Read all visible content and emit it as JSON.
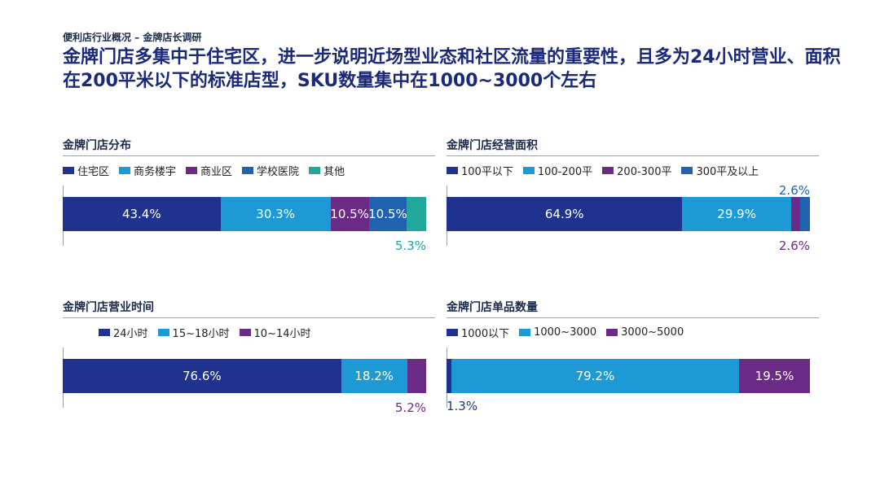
{
  "header": {
    "kicker": "便利店行业概况 – 金牌店长调研",
    "headline": "金牌门店多集中于住宅区，进一步说明近场型业态和社区流量的重要性，且多为24小时营业、面积在200平米以下的标准店型，SKU数量集中在1000~3000个左右"
  },
  "colors": {
    "navy": "#1f3290",
    "sky": "#1d9ad6",
    "purple": "#6c2a87",
    "mid_blue": "#1e62b0",
    "teal": "#21a89a"
  },
  "chart_data": [
    {
      "type": "bar",
      "stacked": true,
      "orientation": "horizontal",
      "title": "金牌门店分布",
      "legend_position": "top",
      "series": [
        {
          "name": "住宅区",
          "value": 43.4,
          "label": "43.4%",
          "color": "#1f3290"
        },
        {
          "name": "商务楼宇",
          "value": 30.3,
          "label": "30.3%",
          "color": "#1d9ad6"
        },
        {
          "name": "商业区",
          "value": 10.5,
          "label": "10.5%",
          "color": "#6c2a87"
        },
        {
          "name": "学校医院",
          "value": 10.5,
          "label": "10.5%",
          "color": "#1e62b0"
        },
        {
          "name": "其他",
          "value": 5.3,
          "label": "5.3%",
          "color": "#21a89a"
        }
      ]
    },
    {
      "type": "bar",
      "stacked": true,
      "orientation": "horizontal",
      "title": "金牌门店经营面积",
      "legend_position": "top",
      "series": [
        {
          "name": "100平以下",
          "value": 64.9,
          "label": "64.9%",
          "color": "#1f3290"
        },
        {
          "name": "100-200平",
          "value": 29.9,
          "label": "29.9%",
          "color": "#1d9ad6"
        },
        {
          "name": "200-300平",
          "value": 2.6,
          "label": "2.6%",
          "color": "#6c2a87"
        },
        {
          "name": "300平及以上",
          "value": 2.6,
          "label": "2.6%",
          "color": "#1e62b0"
        }
      ]
    },
    {
      "type": "bar",
      "stacked": true,
      "orientation": "horizontal",
      "title": "金牌门店营业时间",
      "legend_position": "top",
      "series": [
        {
          "name": "24小时",
          "value": 76.6,
          "label": "76.6%",
          "color": "#1f3290"
        },
        {
          "name": "15~18小时",
          "value": 18.2,
          "label": "18.2%",
          "color": "#1d9ad6"
        },
        {
          "name": "10~14小时",
          "value": 5.2,
          "label": "5.2%",
          "color": "#6c2a87"
        }
      ]
    },
    {
      "type": "bar",
      "stacked": true,
      "orientation": "horizontal",
      "title": "金牌门店单品数量",
      "legend_position": "top",
      "series": [
        {
          "name": "1000以下",
          "value": 1.3,
          "label": "1.3%",
          "color": "#1f3290"
        },
        {
          "name": "1000~3000",
          "value": 79.2,
          "label": "79.2%",
          "color": "#1d9ad6"
        },
        {
          "name": "3000~5000",
          "value": 19.5,
          "label": "19.5%",
          "color": "#6c2a87"
        }
      ]
    }
  ]
}
